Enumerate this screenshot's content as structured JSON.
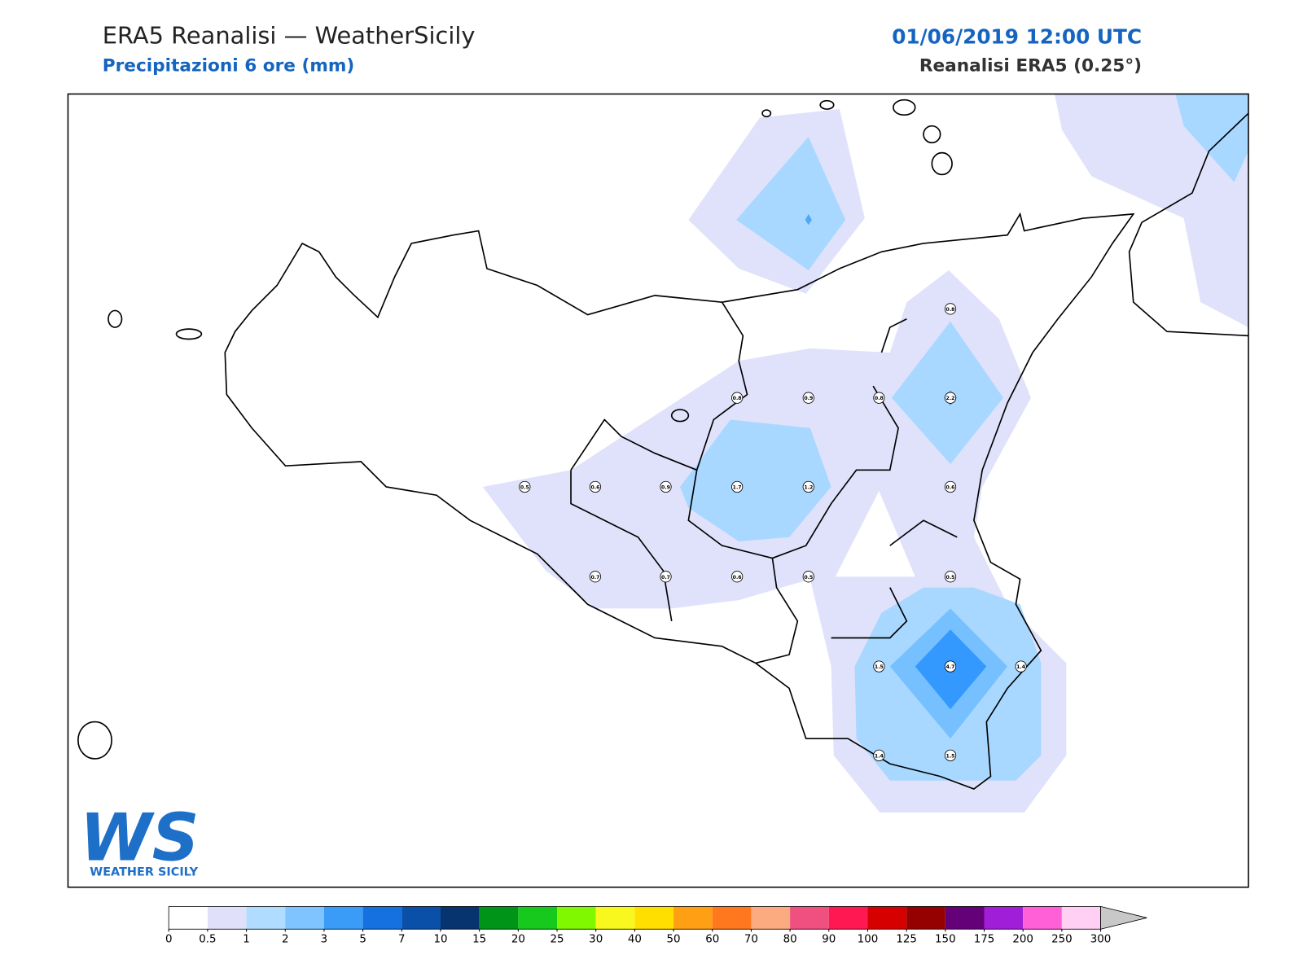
{
  "header": {
    "title": "ERA5 Reanalisi — WeatherSicily",
    "subtitle": "Precipitazioni 6 ore (mm)",
    "datetime": "01/06/2019 12:00 UTC",
    "source": "Reanalisi ERA5 (0.25°)"
  },
  "stations": [
    0.8,
    0.8,
    0.9,
    0.8,
    2.2,
    0.5,
    0.6,
    0.9,
    1.7,
    1.2,
    0.6,
    0.7,
    0.7,
    0.6,
    0.5,
    0.5,
    1.5,
    4.7,
    1.4,
    1.4,
    1.5
  ],
  "colorbar": {
    "ticks": [
      0,
      0.5,
      1,
      2,
      3,
      5,
      7,
      10,
      15,
      20,
      25,
      30,
      40,
      50,
      60,
      70,
      80,
      90,
      100,
      125,
      150,
      175,
      200,
      250,
      300
    ],
    "colors": [
      "#ffffff",
      "#e0e0fb",
      "#b0dcff",
      "#7fc4ff",
      "#3a9cf7",
      "#1571e0",
      "#0a4fa8",
      "#07336e",
      "#009419",
      "#17c81d",
      "#7ff800",
      "#f8f81f",
      "#ffdf00",
      "#ff9f14",
      "#ff781e",
      "#fcab80",
      "#f05080",
      "#ff1852",
      "#d60000",
      "#950000",
      "#640078",
      "#a01ed8",
      "#ff60d8",
      "#ffd0f4"
    ],
    "over_color": "#c8c8c8"
  },
  "logo": {
    "mark": "WS",
    "name": "WEATHER SICILY"
  }
}
